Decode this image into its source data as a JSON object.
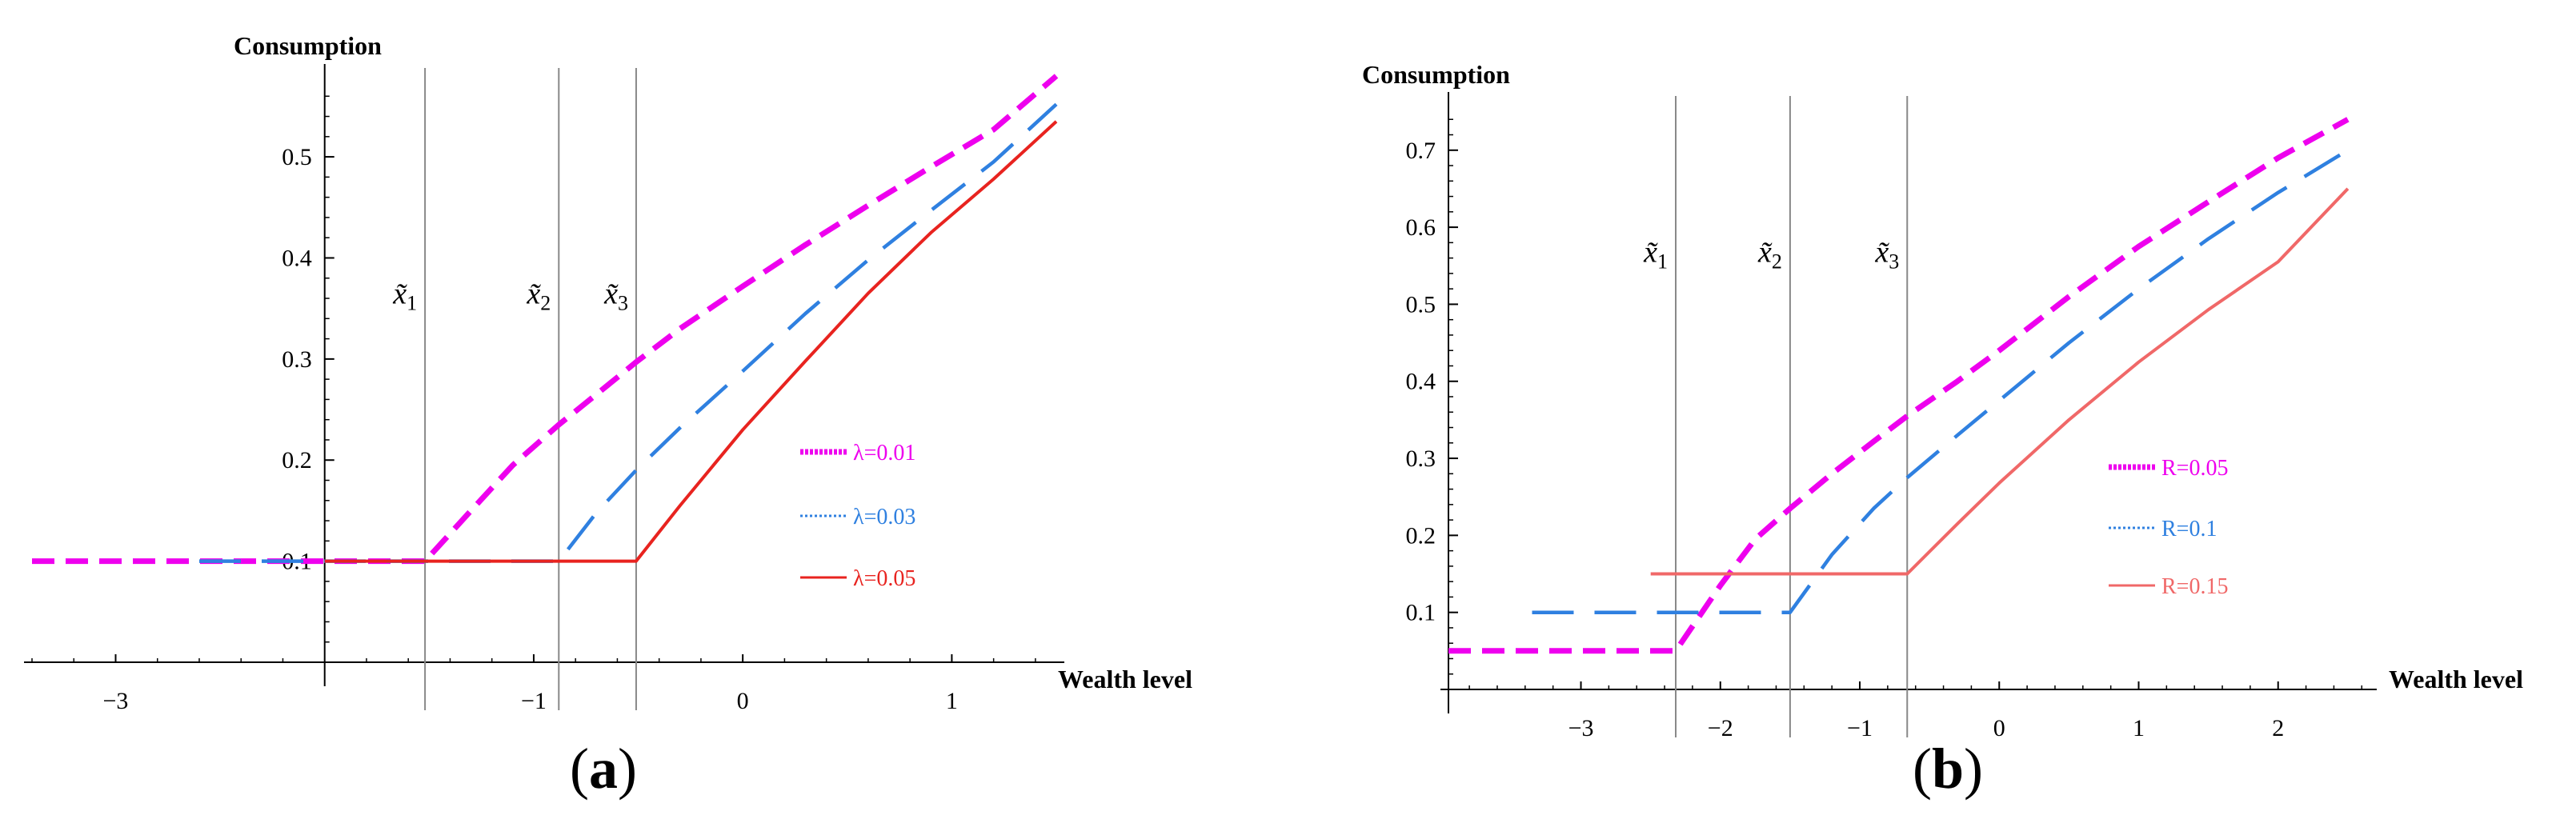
{
  "panels": [
    {
      "id": "a",
      "caption_open": "(",
      "caption_letter": "a",
      "caption_close": ")",
      "chart_data": {
        "type": "line",
        "title": "",
        "xlabel": "Wealth level",
        "ylabel": "Consumption",
        "xlim": [
          -3.4,
          1.5
        ],
        "ylim": [
          0.0,
          0.58
        ],
        "y_axis_at_x": -2.0,
        "x_ticks": [
          -3,
          -1,
          0,
          1
        ],
        "x_tick_labels": [
          "−3",
          "−1",
          "0",
          "1"
        ],
        "y_ticks": [
          0.1,
          0.2,
          0.3,
          0.4,
          0.5
        ],
        "y_tick_labels": [
          "0.1",
          "0.2",
          "0.3",
          "0.4",
          "0.5"
        ],
        "vlines": [
          {
            "x": -1.52,
            "label_base": "x̃",
            "label_sub": "1"
          },
          {
            "x": -0.88,
            "label_base": "x̃",
            "label_sub": "2"
          },
          {
            "x": -0.51,
            "label_base": "x̃",
            "label_sub": "3"
          }
        ],
        "vline_label_y": 0.355,
        "series": [
          {
            "name": "λ=0.01",
            "color": "#ee00ee",
            "style": "short-dash",
            "points": [
              [
                -3.4,
                0.1
              ],
              [
                -1.52,
                0.1
              ],
              [
                -1.3,
                0.15
              ],
              [
                -1.1,
                0.195
              ],
              [
                -0.88,
                0.235
              ],
              [
                -0.7,
                0.265
              ],
              [
                -0.51,
                0.297
              ],
              [
                -0.3,
                0.33
              ],
              [
                0.0,
                0.372
              ],
              [
                0.3,
                0.413
              ],
              [
                0.6,
                0.452
              ],
              [
                0.9,
                0.49
              ],
              [
                1.2,
                0.527
              ],
              [
                1.5,
                0.58
              ]
            ]
          },
          {
            "name": "λ=0.03",
            "color": "#2f80e0",
            "style": "long-dash",
            "points": [
              [
                -2.6,
                0.1
              ],
              [
                -0.88,
                0.1
              ],
              [
                -0.7,
                0.148
              ],
              [
                -0.51,
                0.19
              ],
              [
                -0.3,
                0.232
              ],
              [
                0.0,
                0.288
              ],
              [
                0.3,
                0.345
              ],
              [
                0.6,
                0.398
              ],
              [
                0.9,
                0.447
              ],
              [
                1.2,
                0.495
              ],
              [
                1.5,
                0.552
              ]
            ]
          },
          {
            "name": "λ=0.05",
            "color": "#e8231f",
            "style": "solid",
            "points": [
              [
                -2.0,
                0.1
              ],
              [
                -0.51,
                0.1
              ],
              [
                -0.3,
                0.155
              ],
              [
                0.0,
                0.23
              ],
              [
                0.3,
                0.298
              ],
              [
                0.6,
                0.365
              ],
              [
                0.9,
                0.425
              ],
              [
                1.2,
                0.478
              ],
              [
                1.5,
                0.535
              ]
            ]
          }
        ],
        "legend_placement": "center-right"
      }
    },
    {
      "id": "b",
      "caption_open": "(",
      "caption_letter": "b",
      "caption_close": ")",
      "chart_data": {
        "type": "line",
        "title": "",
        "xlabel": "Wealth level",
        "ylabel": "Consumption",
        "xlim": [
          -3.95,
          2.65
        ],
        "ylim": [
          0.0,
          0.76
        ],
        "y_axis_at_x": -3.95,
        "x_ticks": [
          -3,
          -2,
          -1,
          0,
          1,
          2
        ],
        "x_tick_labels": [
          "−3",
          "−2",
          "−1",
          "0",
          "1",
          "2"
        ],
        "y_ticks": [
          0.1,
          0.2,
          0.3,
          0.4,
          0.5,
          0.6,
          0.7
        ],
        "y_tick_labels": [
          "0.1",
          "0.2",
          "0.3",
          "0.4",
          "0.5",
          "0.6",
          "0.7"
        ],
        "vlines": [
          {
            "x": -2.32,
            "label_base": "x̃",
            "label_sub": "1"
          },
          {
            "x": -1.5,
            "label_base": "x̃",
            "label_sub": "2"
          },
          {
            "x": -0.66,
            "label_base": "x̃",
            "label_sub": "3"
          }
        ],
        "vline_label_y": 0.555,
        "series": [
          {
            "name": "R=0.05",
            "color": "#ee00ee",
            "style": "short-dash",
            "points": [
              [
                -3.95,
                0.05
              ],
              [
                -2.32,
                0.05
              ],
              [
                -2.0,
                0.135
              ],
              [
                -1.75,
                0.195
              ],
              [
                -1.5,
                0.235
              ],
              [
                -1.2,
                0.28
              ],
              [
                -0.9,
                0.322
              ],
              [
                -0.66,
                0.355
              ],
              [
                -0.3,
                0.4
              ],
              [
                0.0,
                0.44
              ],
              [
                0.5,
                0.51
              ],
              [
                1.0,
                0.575
              ],
              [
                1.5,
                0.633
              ],
              [
                2.0,
                0.69
              ],
              [
                2.5,
                0.74
              ]
            ]
          },
          {
            "name": "R=0.1",
            "color": "#2f80e0",
            "style": "long-dash",
            "points": [
              [
                -3.35,
                0.1
              ],
              [
                -1.5,
                0.1
              ],
              [
                -1.2,
                0.175
              ],
              [
                -0.9,
                0.235
              ],
              [
                -0.66,
                0.275
              ],
              [
                -0.3,
                0.33
              ],
              [
                0.0,
                0.375
              ],
              [
                0.5,
                0.45
              ],
              [
                1.0,
                0.52
              ],
              [
                1.5,
                0.585
              ],
              [
                2.0,
                0.645
              ],
              [
                2.5,
                0.7
              ]
            ]
          },
          {
            "name": "R=0.15",
            "color": "#f06868",
            "style": "solid",
            "points": [
              [
                -2.5,
                0.15
              ],
              [
                -0.66,
                0.15
              ],
              [
                -0.3,
                0.215
              ],
              [
                0.0,
                0.268
              ],
              [
                0.5,
                0.35
              ],
              [
                1.0,
                0.425
              ],
              [
                1.5,
                0.493
              ],
              [
                2.0,
                0.555
              ],
              [
                2.5,
                0.65
              ]
            ]
          }
        ],
        "legend_placement": "center-right"
      }
    }
  ]
}
